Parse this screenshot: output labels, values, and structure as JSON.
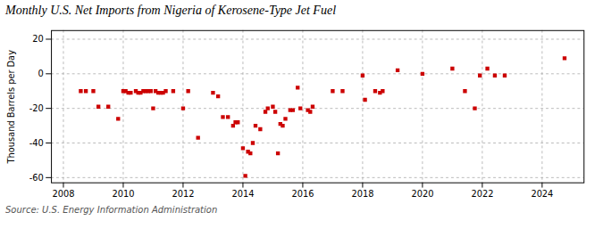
{
  "chart_data": {
    "type": "scatter",
    "title": "Monthly U.S. Net Imports from Nigeria of Kerosene-Type Jet Fuel",
    "ylabel": "Thousand Barrels per Day",
    "source": "Source: U.S. Energy Information Administration",
    "color": "#cc0000",
    "marker": "square",
    "grid": true,
    "xlim": [
      2007.6,
      2025.4
    ],
    "ylim": [
      -63,
      25
    ],
    "xticks": [
      2008,
      2010,
      2012,
      2014,
      2016,
      2018,
      2020,
      2022,
      2024
    ],
    "yticks": [
      -60,
      -40,
      -20,
      0,
      20
    ],
    "x": [
      2008.58,
      2008.75,
      2009.0,
      2009.17,
      2009.5,
      2009.83,
      2010.0,
      2010.08,
      2010.17,
      2010.25,
      2010.42,
      2010.5,
      2010.58,
      2010.67,
      2010.75,
      2010.83,
      2010.92,
      2011.0,
      2011.08,
      2011.17,
      2011.25,
      2011.33,
      2011.42,
      2011.67,
      2012.0,
      2012.17,
      2012.5,
      2013.0,
      2013.17,
      2013.33,
      2013.5,
      2013.67,
      2013.75,
      2013.83,
      2014.0,
      2014.08,
      2014.17,
      2014.25,
      2014.33,
      2014.42,
      2014.58,
      2014.75,
      2014.83,
      2015.0,
      2015.08,
      2015.17,
      2015.25,
      2015.33,
      2015.42,
      2015.58,
      2015.67,
      2015.83,
      2015.92,
      2016.17,
      2016.25,
      2016.33,
      2017.0,
      2017.33,
      2018.0,
      2018.08,
      2018.42,
      2018.58,
      2018.67,
      2019.17,
      2020.0,
      2021.0,
      2021.42,
      2021.75,
      2021.92,
      2022.17,
      2022.42,
      2022.75,
      2024.75
    ],
    "values": [
      -10,
      -10,
      -10,
      -19,
      -19,
      -26,
      -10,
      -10,
      -11,
      -11,
      -10,
      -11,
      -11,
      -10,
      -10,
      -10,
      -10,
      -20,
      -10,
      -11,
      -11,
      -11,
      -10,
      -10,
      -20,
      -10,
      -37,
      -11,
      -13,
      -25,
      -25,
      -30,
      -28,
      -28,
      -43,
      -59,
      -45,
      -46,
      -40,
      -30,
      -32,
      -22,
      -20,
      -19,
      -22,
      -46,
      -29,
      -30,
      -26,
      -21,
      -21,
      -8,
      -20,
      -21,
      -22,
      -19,
      -10,
      -10,
      -1,
      -15,
      -10,
      -11,
      -10,
      2,
      0,
      3,
      -10,
      -20,
      -1,
      3,
      -1,
      -1,
      9
    ]
  }
}
